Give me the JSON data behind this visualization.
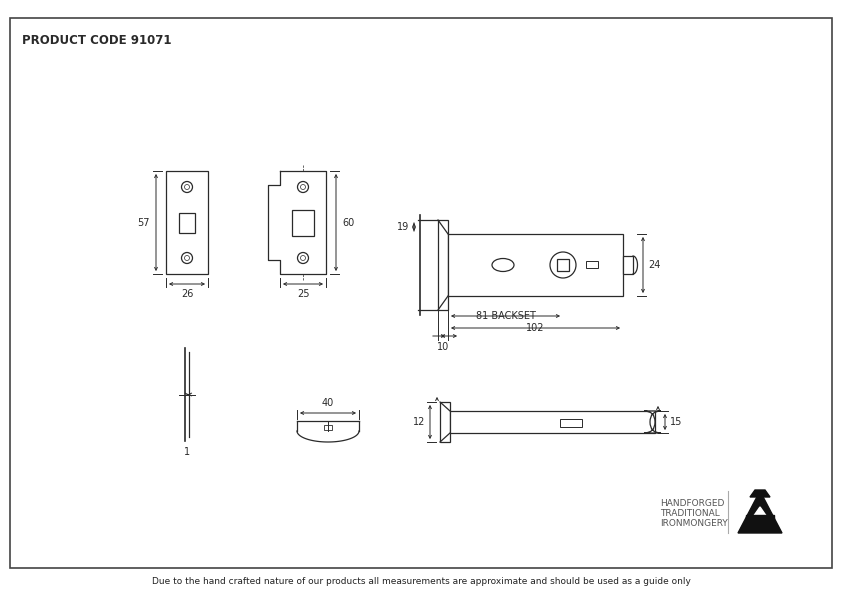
{
  "title": "PRODUCT CODE 91071",
  "footer": "Due to the hand crafted nature of our products all measurements are approximate and should be used as a guide only",
  "brand_line1": "HANDFORGED",
  "brand_line2": "TRADITIONAL",
  "brand_line3": "IRONMONGERY",
  "draw_color": "#2a2a2a",
  "border_color": "#444444",
  "line_color": "#2a2a2a"
}
